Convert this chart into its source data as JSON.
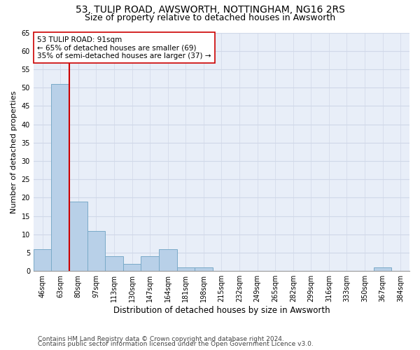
{
  "title": "53, TULIP ROAD, AWSWORTH, NOTTINGHAM, NG16 2RS",
  "subtitle": "Size of property relative to detached houses in Awsworth",
  "xlabel": "Distribution of detached houses by size in Awsworth",
  "ylabel": "Number of detached properties",
  "categories": [
    "46sqm",
    "63sqm",
    "80sqm",
    "97sqm",
    "113sqm",
    "130sqm",
    "147sqm",
    "164sqm",
    "181sqm",
    "198sqm",
    "215sqm",
    "232sqm",
    "249sqm",
    "265sqm",
    "282sqm",
    "299sqm",
    "316sqm",
    "333sqm",
    "350sqm",
    "367sqm",
    "384sqm"
  ],
  "values": [
    6,
    51,
    19,
    11,
    4,
    2,
    4,
    6,
    1,
    1,
    0,
    0,
    0,
    0,
    0,
    0,
    0,
    0,
    0,
    1,
    0
  ],
  "bar_color": "#b8d0e8",
  "bar_edge_color": "#7aaac8",
  "vline_color": "#cc0000",
  "annotation_text": "53 TULIP ROAD: 91sqm\n← 65% of detached houses are smaller (69)\n35% of semi-detached houses are larger (37) →",
  "annotation_box_color": "#ffffff",
  "annotation_box_edge_color": "#cc0000",
  "ylim": [
    0,
    65
  ],
  "yticks": [
    0,
    5,
    10,
    15,
    20,
    25,
    30,
    35,
    40,
    45,
    50,
    55,
    60,
    65
  ],
  "grid_color": "#d0d8e8",
  "bg_color": "#e8eef8",
  "footer1": "Contains HM Land Registry data © Crown copyright and database right 2024.",
  "footer2": "Contains public sector information licensed under the Open Government Licence v3.0.",
  "title_fontsize": 10,
  "subtitle_fontsize": 9,
  "xlabel_fontsize": 8.5,
  "ylabel_fontsize": 8,
  "tick_fontsize": 7,
  "annot_fontsize": 7.5,
  "footer_fontsize": 6.5
}
